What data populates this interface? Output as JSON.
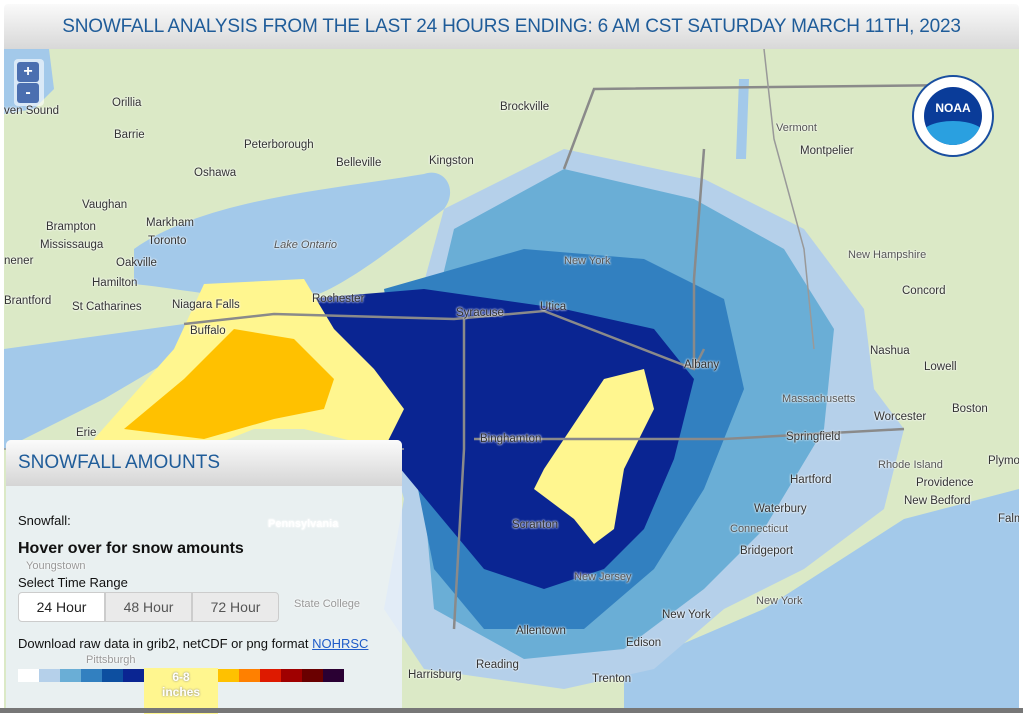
{
  "header": {
    "title": "SNOWFALL ANALYSIS FROM THE LAST 24 HOURS ENDING: 6 AM CST SATURDAY MARCH 11TH, 2023"
  },
  "map": {
    "zoom_in": "+",
    "zoom_out": "-",
    "logo": "NOAA",
    "colors": {
      "land": "#dbe9c6",
      "water": "#a3c9ea"
    },
    "places": [
      "ven Sound",
      "Orillia",
      "Barrie",
      "Peterborough",
      "Belleville",
      "Kingston",
      "Brockville",
      "Vermont",
      "Montpelier",
      "Oshawa",
      "Vaughan",
      "Brampton",
      "Markham",
      "Mississauga",
      "Toronto",
      "Lake Ontario",
      "nener",
      "Oakville",
      "Hamilton",
      "Brantford",
      "St Catharines",
      "Niagara Falls",
      "Rochester",
      "Buffalo",
      "Syracuse",
      "Utica",
      "New York",
      "New Hampshire",
      "Concord",
      "Nashua",
      "Lowell",
      "Albany",
      "Massachusetts",
      "Worcester",
      "Boston",
      "Springfield",
      "Erie",
      "Binghamton",
      "Hartford",
      "Rhode Island",
      "Providence",
      "Plymou",
      "New Bedford",
      "Falm",
      "Waterbury",
      "Connecticut",
      "Bridgeport",
      "Scranton",
      "New Jersey",
      "New York",
      "New York",
      "Allentown",
      "Edison",
      "Reading",
      "Trenton",
      "Harrisburg",
      "Youngstown",
      "Pennsylvania",
      "State College",
      "Pittsburgh"
    ]
  },
  "panel": {
    "title": "SNOWFALL AMOUNTS",
    "snowfall_label": "Snowfall:",
    "hover_text": "Hover over for snow amounts",
    "time_range_label": "Select Time Range",
    "buttons": [
      "24 Hour",
      "48 Hour",
      "72 Hour"
    ],
    "selected": "24 Hour",
    "download_text": "Download raw data in grib2, netCDF or png format",
    "download_link": "NOHRSC",
    "legend": {
      "colors": [
        "#ffffff",
        "#b5d0ea",
        "#6aaed6",
        "#3280c0",
        "#0d4fa0",
        "#0a2592",
        "#fff68f",
        "#ffc100",
        "#ff8000",
        "#de1a00",
        "#a00000",
        "#6a0000",
        "#2a0033"
      ],
      "selected_label_1": "6-8",
      "selected_label_2": "inches"
    }
  }
}
